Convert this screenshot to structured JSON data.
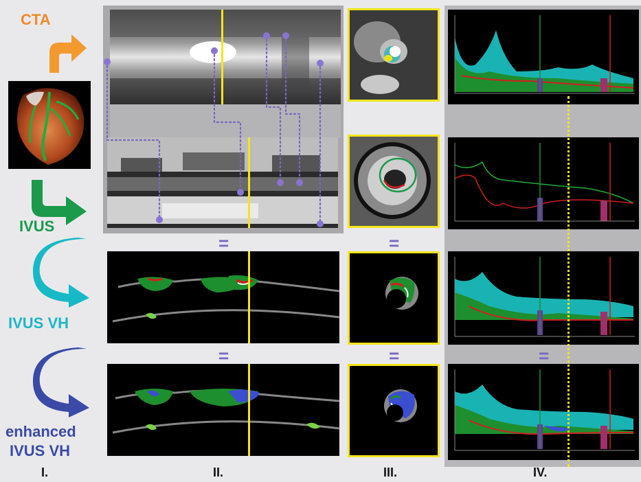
{
  "rows": {
    "cta": {
      "label": "CTA",
      "color": "#f08a2a"
    },
    "ivus": {
      "label": "IVUS",
      "color": "#1a9a4a"
    },
    "ivus_vh": {
      "label": "IVUS VH",
      "color": "#1cb6c6"
    },
    "enhanced_ivus_vh": {
      "label_line1": "enhanced",
      "label_line2": "IVUS VH",
      "color": "#3a4aa6"
    }
  },
  "columns": {
    "c1": "I.",
    "c2": "II.",
    "c3": "III.",
    "c4": "IV."
  },
  "equals": "=",
  "colors": {
    "background": "#e9e9ec",
    "panel_gray": "#a9a9ac",
    "marker_yellow": "#f4e51b",
    "connector_purple": "#7a66c2",
    "fibrous_green": "#1e8f2e",
    "fibrofatty": "#7ad04a",
    "necrotic_red": "#d21f1f",
    "calcium_white": "#ffffff",
    "lumen_teal": "#1ab3b3",
    "enhanced_blue": "#3b4ed0"
  },
  "icons": [
    "arrow-cta-to-heart-icon",
    "arrow-heart-to-ivus-icon",
    "arrow-ivus-to-vh-icon",
    "arrow-vh-to-enhanced-icon"
  ]
}
